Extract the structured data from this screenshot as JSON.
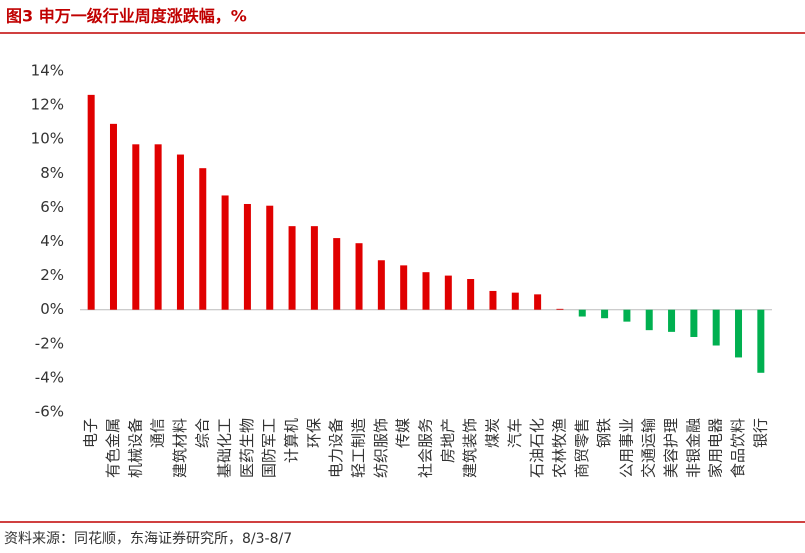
{
  "chart_data": {
    "type": "bar",
    "title": "图3  申万一级行业周度涨跌幅，%",
    "source": "资料来源：同花顺，东海证券研究所，8/3-8/7",
    "categories": [
      "电子",
      "有色金属",
      "机械设备",
      "通信",
      "建筑材料",
      "综合",
      "基础化工",
      "医药生物",
      "国防军工",
      "计算机",
      "环保",
      "电力设备",
      "轻工制造",
      "纺织服饰",
      "传媒",
      "社会服务",
      "房地产",
      "建筑装饰",
      "煤炭",
      "汽车",
      "石油石化",
      "农林牧渔",
      "商贸零售",
      "钢铁",
      "公用事业",
      "交通运输",
      "美容护理",
      "非银金融",
      "家用电器",
      "食品饮料",
      "银行"
    ],
    "values": [
      12.6,
      10.9,
      9.7,
      9.7,
      9.1,
      8.3,
      6.7,
      6.2,
      6.1,
      4.9,
      4.9,
      4.2,
      3.9,
      2.9,
      2.6,
      2.2,
      2.0,
      1.8,
      1.1,
      1.0,
      0.9,
      0.05,
      -0.4,
      -0.5,
      -0.7,
      -1.2,
      -1.3,
      -1.6,
      -2.1,
      -2.8,
      -3.7
    ],
    "positive_color": "#e00000",
    "negative_color": "#00b050",
    "ylim": [
      -6,
      14
    ],
    "yticks": [
      {
        "value": -6,
        "label": "-6%"
      },
      {
        "value": -4,
        "label": "-4%"
      },
      {
        "value": -2,
        "label": "-2%"
      },
      {
        "value": 0,
        "label": "0%"
      },
      {
        "value": 2,
        "label": "2%"
      },
      {
        "value": 4,
        "label": "4%"
      },
      {
        "value": 6,
        "label": "6%"
      },
      {
        "value": 8,
        "label": "8%"
      },
      {
        "value": 10,
        "label": "10%"
      },
      {
        "value": 12,
        "label": "12%"
      },
      {
        "value": 14,
        "label": "14%"
      }
    ],
    "grid": false
  }
}
